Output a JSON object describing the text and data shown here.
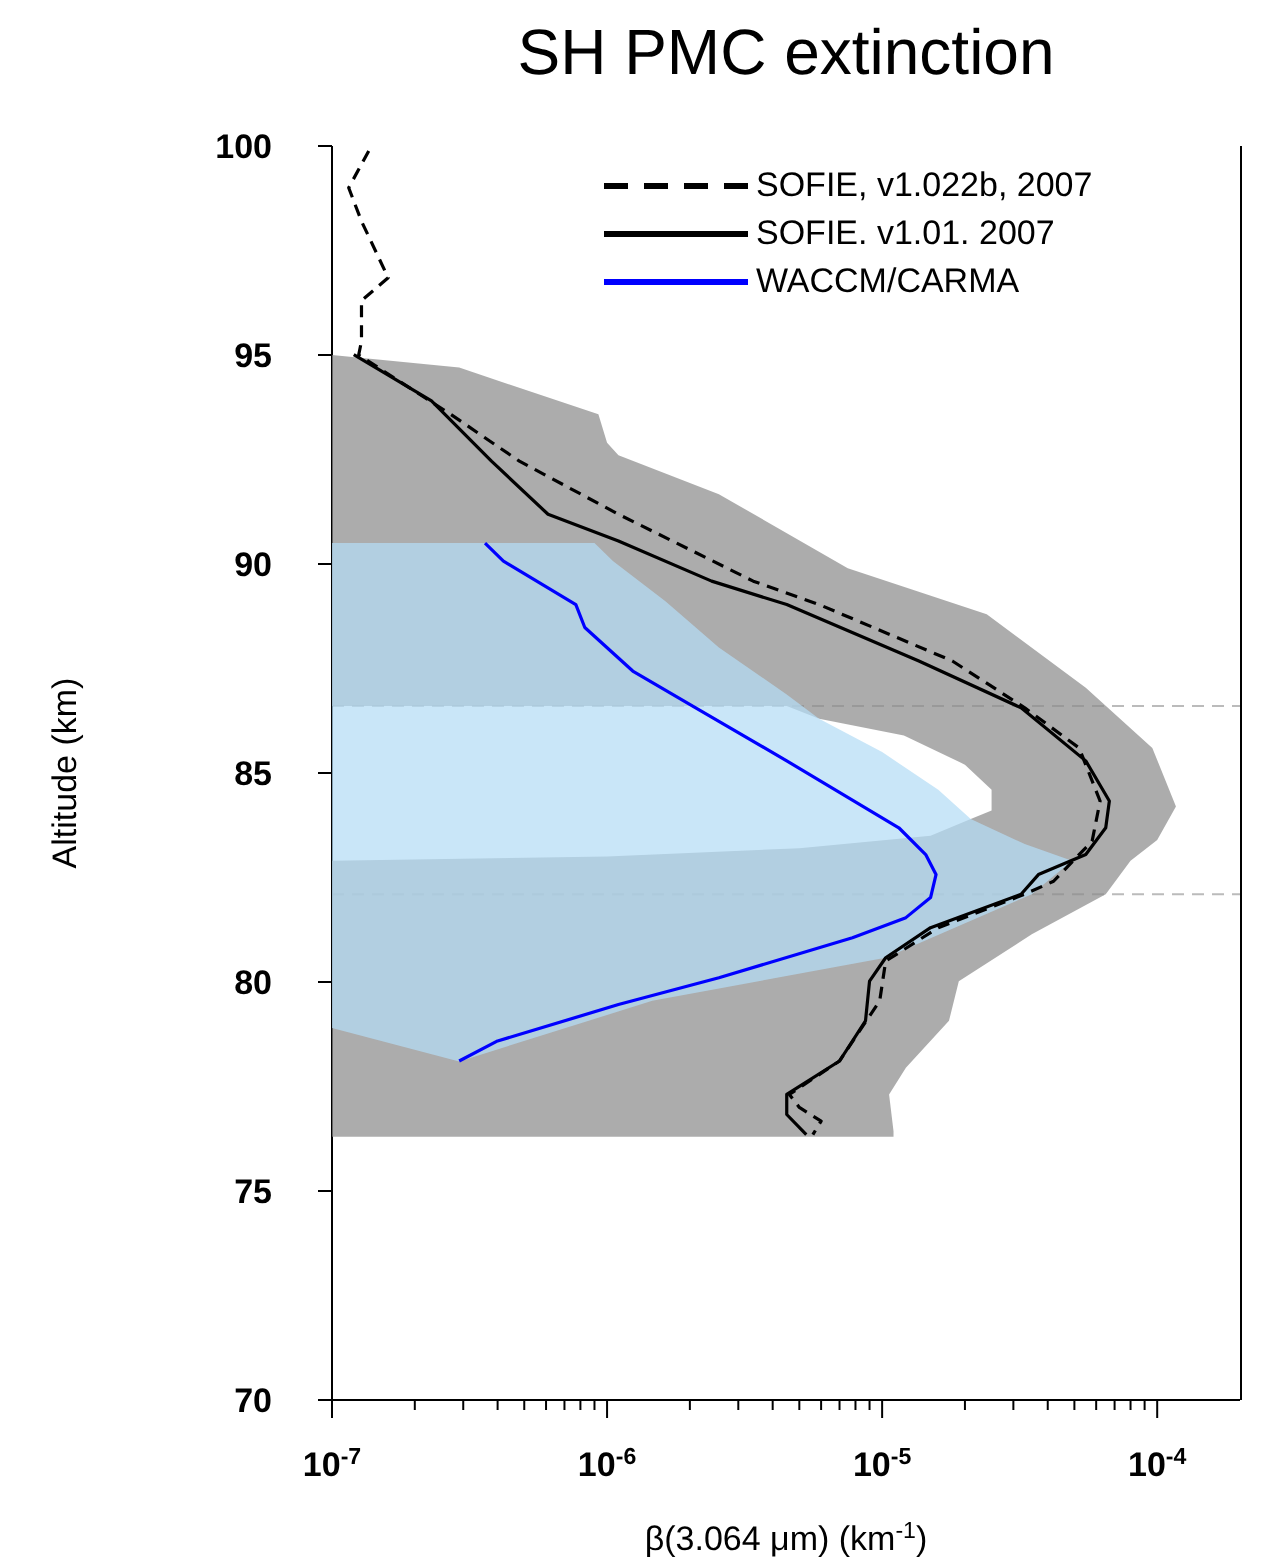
{
  "chart_data": {
    "type": "line",
    "title": "SH PMC extinction",
    "xlabel": "β(3.064 μm) (km$^{-1}$)",
    "ylabel": "Altitude (km)",
    "log": "x",
    "xlim": [
      1e-07,
      0.0002
    ],
    "xticks": [
      {
        "value": 1e-07,
        "label": "10$^{-7}$"
      },
      {
        "value": 2e-07,
        "label": null
      },
      {
        "value": 3e-07,
        "label": null
      },
      {
        "value": 4e-07,
        "label": null
      },
      {
        "value": 5e-07,
        "label": null
      },
      {
        "value": 6e-07,
        "label": null
      },
      {
        "value": 7e-07,
        "label": null
      },
      {
        "value": 8e-07,
        "label": null
      },
      {
        "value": 9e-07,
        "label": null
      },
      {
        "value": 1e-06,
        "label": "10$^{-6}$"
      },
      {
        "value": 2e-06,
        "label": null
      },
      {
        "value": 3e-06,
        "label": null
      },
      {
        "value": 4e-06,
        "label": null
      },
      {
        "value": 5e-06,
        "label": null
      },
      {
        "value": 6e-06,
        "label": null
      },
      {
        "value": 7e-06,
        "label": null
      },
      {
        "value": 8e-06,
        "label": null
      },
      {
        "value": 9e-06,
        "label": null
      },
      {
        "value": 1e-05,
        "label": "10$^{-5}$"
      },
      {
        "value": 2e-05,
        "label": null
      },
      {
        "value": 3e-05,
        "label": null
      },
      {
        "value": 4e-05,
        "label": null
      },
      {
        "value": 5e-05,
        "label": null
      },
      {
        "value": 6e-05,
        "label": null
      },
      {
        "value": 7e-05,
        "label": null
      },
      {
        "value": 8e-05,
        "label": null
      },
      {
        "value": 9e-05,
        "label": null
      },
      {
        "value": 0.0001,
        "label": "10$^{-4}$"
      }
    ],
    "ylim": [
      70,
      100
    ],
    "yticks": [
      70,
      75,
      80,
      85,
      90,
      95,
      100
    ],
    "grid": false,
    "legend": "top right",
    "marker": "none",
    "ref_lines": [
      {
        "axis": "y",
        "value": 86.6,
        "color": "#bbbbbb",
        "line_style": "dashed"
      },
      {
        "axis": "y",
        "value": 82.1,
        "color": "#bbbbbb",
        "line_style": "dashed"
      }
    ],
    "series": [
      {
        "type": "area",
        "color": "#8c8c8c",
        "x": [
          1e-07,
          1.1e-05,
          1.1e-05,
          1.06e-05,
          1.22e-05,
          1.75e-05,
          1.9e-05,
          3.5e-05,
          6.5e-05,
          8e-05,
          0.0001,
          0.000117,
          9.6e-05,
          5.5e-05,
          2.4e-05,
          7.5e-06,
          2.55e-06,
          1.1e-06,
          1e-06,
          9.3e-07,
          2.9e-07,
          1e-07,
          1e-07,
          4.5e-06,
          5.9e-06,
          1.2e-05,
          2e-05,
          2.5e-05,
          2.5e-05,
          2.1e-05,
          1.5e-05,
          5e-06,
          1e-06,
          1e-07
        ],
        "values": [
          76.3,
          76.3,
          76.43,
          77.31,
          77.95,
          79.07,
          80.02,
          81.14,
          82.1,
          82.9,
          83.4,
          84.2,
          85.6,
          87.04,
          88.8,
          89.9,
          91.67,
          92.6,
          92.9,
          93.58,
          94.7,
          95.0,
          86.6,
          86.6,
          86.3,
          85.9,
          85.2,
          84.6,
          84.1,
          83.9,
          83.5,
          83.2,
          83.0,
          82.9
        ]
      },
      {
        "type": "area",
        "color": "#b4dcf5",
        "x": [
          1e-07,
          9e-07,
          1.05e-06,
          1.63e-06,
          2.55e-06,
          4.5e-06,
          5.9e-06,
          1e-05,
          1.6e-05,
          2.1e-05,
          3.3e-05,
          4.9e-05,
          3.5e-05,
          1.03e-05,
          1.46e-06,
          2.9e-07,
          1e-07
        ],
        "values": [
          90.5,
          90.5,
          90.07,
          89.11,
          88.0,
          86.88,
          86.3,
          85.5,
          84.6,
          83.9,
          83.3,
          82.9,
          82.1,
          80.58,
          79.55,
          78.1,
          78.9
        ]
      },
      {
        "name": "SOFIE, v1.022b, 2007",
        "type": "line",
        "color": "#000000",
        "line_style": "dashed",
        "x": [
          1.36e-07,
          1.15e-07,
          1.28e-07,
          1.6e-07,
          1.28e-07,
          1.28e-07,
          1.25e-07,
          2.7e-07,
          4.8e-07,
          1.1e-06,
          3.4e-06,
          5.9e-06,
          1.8e-05,
          3.3e-05,
          5.2e-05,
          6.2e-05,
          5.8e-05,
          4.2e-05,
          3.3e-05,
          1.6e-05,
          1.03e-05,
          9.8e-06,
          7e-06,
          4.6e-06,
          5e-06,
          6e-06,
          5.6e-06
        ],
        "values": [
          99.88,
          99.0,
          98.2,
          96.85,
          96.3,
          95.33,
          95.0,
          93.58,
          92.46,
          91.19,
          89.59,
          89.03,
          87.68,
          86.56,
          85.6,
          84.33,
          83.37,
          82.41,
          82.1,
          81.3,
          80.5,
          79.55,
          78.11,
          77.31,
          77.0,
          76.67,
          76.35
        ]
      },
      {
        "name": "SOFIE. v1.01. 2007",
        "type": "line",
        "color": "#000000",
        "line_style": "solid",
        "x": [
          1.2e-07,
          2.3e-07,
          3.8e-07,
          6.1e-07,
          1.1e-06,
          2.4e-06,
          4.5e-06,
          1.36e-05,
          3.2e-05,
          5.5e-05,
          6.7e-05,
          6.5e-05,
          5.5e-05,
          3.7e-05,
          3.2e-05,
          1.5e-05,
          1.03e-05,
          9e-06,
          8.7e-06,
          7e-06,
          4.5e-06,
          4.5e-06,
          5.3e-06
        ],
        "values": [
          95.01,
          93.9,
          92.46,
          91.19,
          90.55,
          89.59,
          89.03,
          87.68,
          86.56,
          85.29,
          84.33,
          83.69,
          83.05,
          82.57,
          82.1,
          81.3,
          80.58,
          80.02,
          79.07,
          78.11,
          77.31,
          76.83,
          76.35
        ]
      },
      {
        "name": "WACCM/CARMA",
        "type": "line",
        "color": "#0000ff",
        "line_style": "solid",
        "x": [
          3.6e-07,
          4.2e-07,
          7.7e-07,
          8.3e-07,
          1.24e-06,
          2.1e-06,
          4.5e-06,
          1.15e-05,
          1.44e-05,
          1.57e-05,
          1.5e-05,
          1.22e-05,
          7.8e-06,
          2.55e-06,
          1.1e-06,
          4e-07,
          2.9e-07
        ],
        "values": [
          90.5,
          90.07,
          89.03,
          88.48,
          87.44,
          86.56,
          85.29,
          83.69,
          83.05,
          82.57,
          82.02,
          81.54,
          81.06,
          80.1,
          79.46,
          78.59,
          78.11
        ]
      }
    ]
  }
}
